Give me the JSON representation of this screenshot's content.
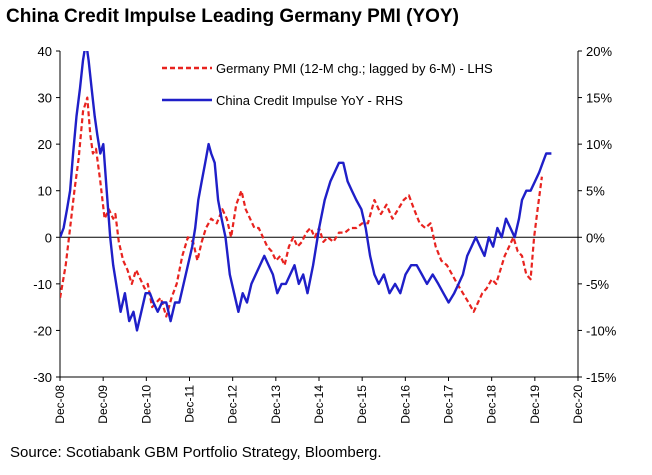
{
  "title": "China Credit Impulse Leading Germany PMI (YOY)",
  "source": "Source: Scotiabank GBM Portfolio Strategy, Bloomberg.",
  "chart_data": {
    "type": "line",
    "title": "China Credit Impulse Leading Germany PMI (YOY)",
    "left_axis": {
      "ylim": [
        -30,
        40
      ],
      "ticks": [
        -30,
        -20,
        -10,
        0,
        10,
        20,
        30,
        40
      ]
    },
    "right_axis": {
      "ylim": [
        -15,
        20
      ],
      "ticks": [
        "-15%",
        "-10%",
        "-5%",
        "0%",
        "5%",
        "10%",
        "15%",
        "20%"
      ]
    },
    "x_ticks": [
      "Dec-08",
      "Dec-09",
      "Dec-10",
      "Dec-11",
      "Dec-12",
      "Dec-13",
      "Dec-14",
      "Dec-15",
      "Dec-16",
      "Dec-17",
      "Dec-18",
      "Dec-19",
      "Dec-20"
    ],
    "xlim": [
      2008.917,
      2020.917
    ],
    "grid": false,
    "legend_position": "top-center",
    "series": [
      {
        "name": "Germany PMI (12-M chg.; lagged by 6-M) - LHS",
        "axis": "left",
        "style": "dashed",
        "color": "#e8231f",
        "x": [
          2008.92,
          2009.05,
          2009.15,
          2009.25,
          2009.35,
          2009.45,
          2009.55,
          2009.62,
          2009.68,
          2009.75,
          2009.85,
          2009.95,
          2010.05,
          2010.15,
          2010.2,
          2010.28,
          2010.38,
          2010.48,
          2010.58,
          2010.68,
          2010.78,
          2010.88,
          2010.95,
          2011.05,
          2011.15,
          2011.25,
          2011.38,
          2011.5,
          2011.62,
          2011.75,
          2011.88,
          2012.0,
          2012.1,
          2012.2,
          2012.3,
          2012.42,
          2012.55,
          2012.68,
          2012.78,
          2012.88,
          2013.0,
          2013.12,
          2013.22,
          2013.32,
          2013.42,
          2013.52,
          2013.62,
          2013.72,
          2013.82,
          2013.92,
          2014.02,
          2014.12,
          2014.22,
          2014.32,
          2014.42,
          2014.52,
          2014.62,
          2014.72,
          2014.82,
          2014.92,
          2015.02,
          2015.12,
          2015.25,
          2015.38,
          2015.52,
          2015.65,
          2015.78,
          2015.92,
          2016.05,
          2016.2,
          2016.35,
          2016.48,
          2016.62,
          2016.75,
          2016.88,
          2017.0,
          2017.12,
          2017.25,
          2017.38,
          2017.5,
          2017.62,
          2017.75,
          2017.88,
          2018.0,
          2018.12,
          2018.25,
          2018.38,
          2018.5,
          2018.6,
          2018.7,
          2018.8,
          2018.92,
          2019.02,
          2019.12,
          2019.22,
          2019.32,
          2019.42,
          2019.52,
          2019.62,
          2019.72,
          2019.82,
          2019.9,
          2019.98,
          2020.08
        ],
        "y": [
          -13,
          -6,
          2,
          10,
          17,
          27,
          30,
          22,
          18,
          19,
          12,
          4,
          6,
          4,
          5,
          -1,
          -5,
          -7,
          -10,
          -7,
          -9,
          -11,
          -10,
          -15,
          -14,
          -13,
          -17,
          -13,
          -10,
          -4,
          0,
          -1,
          -5,
          -1,
          2,
          4,
          3,
          6,
          4,
          0,
          7,
          10,
          6,
          4,
          2,
          2,
          0,
          -2,
          -3,
          -5,
          -4,
          -6,
          -2,
          0,
          -2,
          -1,
          1,
          2,
          0,
          2,
          -1,
          0,
          -1,
          1,
          1,
          2,
          2,
          3,
          3,
          8,
          5,
          7,
          4,
          6,
          8,
          9,
          6,
          3,
          2,
          3,
          -2,
          -5,
          -6,
          -8,
          -10,
          -12,
          -14,
          -16,
          -14,
          -12,
          -11,
          -9,
          -10,
          -7,
          -4,
          -2,
          0,
          -3,
          -4,
          -8,
          -9,
          0,
          6,
          13
        ]
      },
      {
        "name": "China Credit Impulse YoY - RHS",
        "axis": "right",
        "style": "solid",
        "color": "#1f1fc8",
        "x": [
          2008.92,
          2009.0,
          2009.08,
          2009.15,
          2009.22,
          2009.3,
          2009.38,
          2009.45,
          2009.52,
          2009.58,
          2009.65,
          2009.72,
          2009.78,
          2009.85,
          2009.92,
          2010.0,
          2010.08,
          2010.15,
          2010.22,
          2010.32,
          2010.42,
          2010.52,
          2010.62,
          2010.7,
          2010.8,
          2010.9,
          2011.0,
          2011.08,
          2011.18,
          2011.28,
          2011.38,
          2011.48,
          2011.58,
          2011.68,
          2011.78,
          2011.88,
          2011.98,
          2012.05,
          2012.12,
          2012.2,
          2012.28,
          2012.36,
          2012.42,
          2012.5,
          2012.58,
          2012.66,
          2012.75,
          2012.85,
          2012.95,
          2013.05,
          2013.15,
          2013.25,
          2013.35,
          2013.45,
          2013.55,
          2013.65,
          2013.75,
          2013.85,
          2013.95,
          2014.05,
          2014.15,
          2014.25,
          2014.35,
          2014.45,
          2014.55,
          2014.65,
          2014.78,
          2014.92,
          2015.05,
          2015.18,
          2015.28,
          2015.38,
          2015.48,
          2015.58,
          2015.68,
          2015.78,
          2015.9,
          2016.0,
          2016.1,
          2016.2,
          2016.3,
          2016.42,
          2016.55,
          2016.68,
          2016.8,
          2016.92,
          2017.05,
          2017.18,
          2017.3,
          2017.42,
          2017.55,
          2017.68,
          2017.8,
          2017.92,
          2018.05,
          2018.15,
          2018.25,
          2018.35,
          2018.45,
          2018.55,
          2018.65,
          2018.75,
          2018.85,
          2018.95,
          2019.05,
          2019.15,
          2019.25,
          2019.35,
          2019.45,
          2019.55,
          2019.62,
          2019.72,
          2019.82,
          2019.92,
          2020.02,
          2020.1,
          2020.18,
          2020.3
        ],
        "y": [
          0,
          1,
          3,
          5,
          9,
          13,
          16,
          19,
          21,
          19,
          16,
          13,
          11,
          9,
          10,
          5,
          0,
          -3,
          -5,
          -8,
          -6,
          -9,
          -8,
          -10,
          -8,
          -6,
          -6,
          -7,
          -8,
          -7,
          -7,
          -9,
          -7,
          -7,
          -5,
          -3,
          -1,
          1,
          4,
          6,
          8,
          10,
          9,
          8,
          4,
          2,
          0,
          -4,
          -6,
          -8,
          -6,
          -7,
          -5,
          -4,
          -3,
          -2,
          -3,
          -4,
          -6,
          -5,
          -5,
          -4,
          -3,
          -5,
          -4,
          -6,
          -3,
          1,
          4,
          6,
          7,
          8,
          8,
          6,
          5,
          4,
          3,
          1,
          -2,
          -4,
          -5,
          -4,
          -6,
          -5,
          -6,
          -4,
          -3,
          -3,
          -4,
          -5,
          -4,
          -5,
          -6,
          -7,
          -6,
          -5,
          -4,
          -2,
          -1,
          0,
          -1,
          -2,
          0,
          -1,
          1,
          0,
          2,
          1,
          0,
          2,
          4,
          5,
          5,
          6,
          7,
          8,
          9,
          9
        ]
      }
    ]
  }
}
